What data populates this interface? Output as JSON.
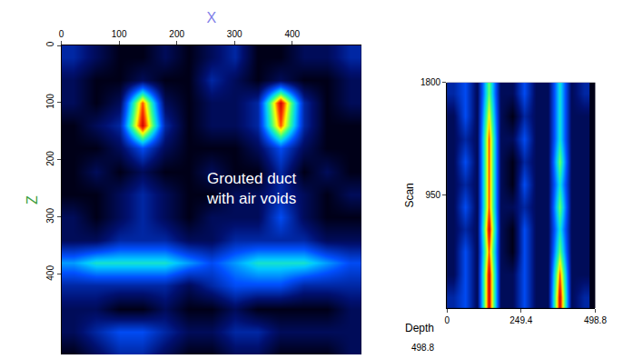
{
  "chart_data": [
    {
      "type": "heatmap",
      "x_label": "X",
      "y_label": "Z",
      "x": [
        20,
        60,
        100,
        140,
        180,
        220,
        260,
        300,
        340,
        380,
        420,
        460,
        500
      ],
      "y": [
        20,
        60,
        100,
        140,
        180,
        220,
        260,
        300,
        340,
        380,
        420,
        460,
        500,
        540
      ],
      "cells": [
        [
          3,
          2,
          1,
          1,
          2,
          1,
          2,
          3,
          1,
          1,
          2,
          2,
          3
        ],
        [
          2,
          1,
          1,
          2,
          1,
          1,
          3,
          2,
          1,
          2,
          1,
          1,
          2
        ],
        [
          2,
          1,
          2,
          9,
          2,
          1,
          2,
          2,
          3,
          10,
          3,
          1,
          2
        ],
        [
          1,
          2,
          3,
          10,
          3,
          1,
          2,
          2,
          3,
          9,
          3,
          1,
          1
        ],
        [
          1,
          1,
          2,
          4,
          2,
          1,
          1,
          1,
          2,
          4,
          2,
          1,
          1
        ],
        [
          1,
          2,
          1,
          2,
          1,
          1,
          2,
          1,
          1,
          3,
          1,
          2,
          1
        ],
        [
          1,
          1,
          2,
          3,
          2,
          1,
          1,
          2,
          2,
          3,
          2,
          1,
          2
        ],
        [
          2,
          1,
          2,
          3,
          2,
          1,
          2,
          2,
          2,
          4,
          2,
          1,
          1
        ],
        [
          2,
          2,
          3,
          3,
          3,
          2,
          2,
          3,
          3,
          3,
          3,
          2,
          2
        ],
        [
          5,
          6,
          6,
          6,
          6,
          5,
          4,
          5,
          6,
          6,
          6,
          5,
          4
        ],
        [
          3,
          3,
          3,
          3,
          3,
          2,
          3,
          4,
          4,
          4,
          3,
          3,
          3
        ],
        [
          2,
          2,
          1,
          1,
          2,
          1,
          1,
          2,
          1,
          1,
          1,
          1,
          2
        ],
        [
          2,
          3,
          4,
          4,
          3,
          2,
          2,
          3,
          3,
          2,
          2,
          2,
          2
        ],
        [
          1,
          2,
          3,
          3,
          2,
          1,
          1,
          2,
          2,
          1,
          1,
          1,
          2
        ]
      ],
      "xlim": [
        0,
        520
      ],
      "ylim": [
        540,
        0
      ],
      "xticks": [
        0,
        100,
        200,
        300,
        400
      ],
      "yticks": [
        0,
        100,
        200,
        300,
        400
      ],
      "annotations": [
        {
          "text": [
            "Grouted duct",
            "with air voids"
          ],
          "x": 330,
          "y": 250
        }
      ]
    },
    {
      "type": "heatmap",
      "y_label": "Scan",
      "depth_label": "Depth",
      "depth_ticks": [
        498.8
      ],
      "x": [
        20,
        60,
        100,
        140,
        180,
        220,
        260,
        300,
        340,
        380,
        420,
        460
      ],
      "y": [
        185,
        355,
        525,
        695,
        865,
        1035,
        1205,
        1375,
        1545,
        1715
      ],
      "cells": [
        [
          3,
          4,
          2,
          10,
          2,
          2,
          4,
          2,
          2,
          10,
          2,
          3
        ],
        [
          2,
          4,
          2,
          10,
          2,
          2,
          4,
          2,
          2,
          9,
          2,
          2
        ],
        [
          2,
          4,
          2,
          9,
          2,
          1,
          4,
          2,
          2,
          7,
          2,
          2
        ],
        [
          2,
          3,
          2,
          10,
          2,
          1,
          4,
          2,
          2,
          6,
          2,
          2
        ],
        [
          2,
          4,
          2,
          9,
          2,
          2,
          3,
          2,
          2,
          7,
          2,
          2
        ],
        [
          2,
          3,
          2,
          9,
          2,
          1,
          4,
          2,
          2,
          6,
          2,
          2
        ],
        [
          2,
          4,
          2,
          9,
          2,
          1,
          3,
          2,
          2,
          7,
          2,
          2
        ],
        [
          2,
          3,
          2,
          9,
          2,
          2,
          4,
          2,
          2,
          6,
          2,
          2
        ],
        [
          2,
          4,
          2,
          8,
          2,
          1,
          3,
          2,
          2,
          6,
          2,
          2
        ],
        [
          3,
          4,
          2,
          7,
          2,
          2,
          4,
          2,
          2,
          6,
          2,
          3
        ]
      ],
      "xlim": [
        0,
        498.8
      ],
      "xticks": [
        0,
        249.4,
        498.8
      ],
      "ylim": [
        100,
        1800
      ],
      "yticks": [
        950,
        1800
      ]
    }
  ]
}
